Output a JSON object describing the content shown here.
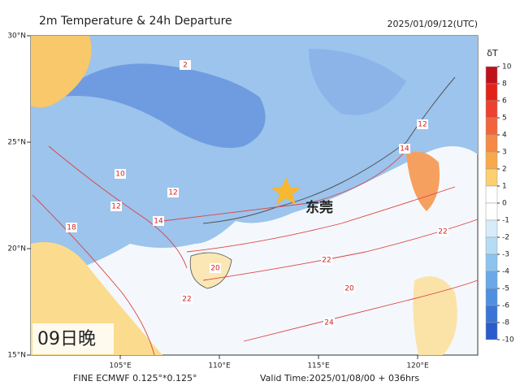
{
  "header": {
    "title": "2m Temperature & 24h Departure",
    "time": "2025/01/09/12(UTC)"
  },
  "map": {
    "lat_ticks": [
      {
        "value": 30,
        "label": "30°N"
      },
      {
        "value": 25,
        "label": "25°N"
      },
      {
        "value": 20,
        "label": "20°N"
      },
      {
        "value": 15,
        "label": "15°N"
      }
    ],
    "lon_ticks": [
      {
        "value": 105,
        "label": "105°E"
      },
      {
        "value": 110,
        "label": "110°E"
      },
      {
        "value": 115,
        "label": "115°E"
      },
      {
        "value": 120,
        "label": "120°E"
      }
    ],
    "city": "东莞",
    "panel_label": "09日晚",
    "contour_labels": [
      14,
      20,
      22,
      20,
      24,
      22,
      14,
      12,
      12,
      10,
      2,
      12,
      18,
      22
    ]
  },
  "colorbar": {
    "title": "δT",
    "ticks": [
      10,
      8,
      6,
      5,
      4,
      3,
      2,
      1,
      0,
      -1,
      -2,
      -3,
      -4,
      -5,
      -6,
      -8,
      -10
    ],
    "colors": [
      "#c0101c",
      "#e2231a",
      "#ee4030",
      "#f2643a",
      "#f58a46",
      "#f8aa4a",
      "#fcd070",
      "#ffffff",
      "#ffffff",
      "#d6ecfa",
      "#b4dcf5",
      "#8cc4ef",
      "#6aa8e8",
      "#4f8fe0",
      "#3a75d6",
      "#2a5ccc"
    ]
  },
  "footer": {
    "model": "FINE ECMWF 0.125°*0.125°",
    "valid": "Valid Time:2025/01/08/00 + 036hrs"
  }
}
